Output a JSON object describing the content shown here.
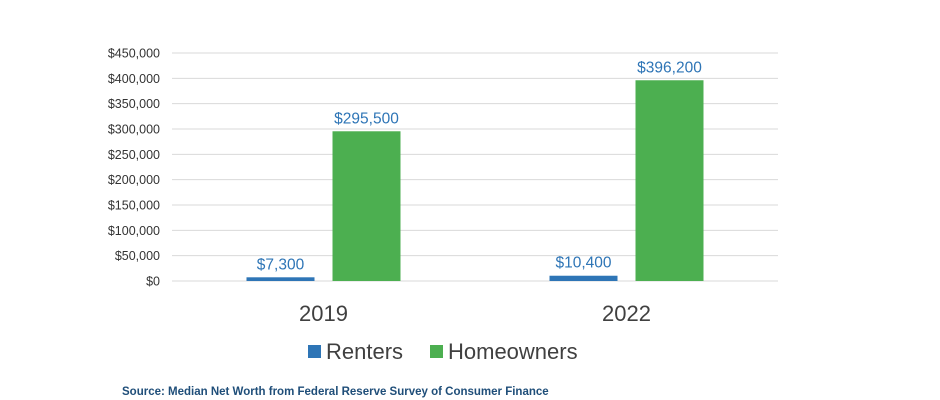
{
  "chart_data": {
    "type": "bar",
    "categories": [
      "2019",
      "2022"
    ],
    "series": [
      {
        "name": "Renters",
        "values": [
          7300,
          10400
        ],
        "labels": [
          "$7,300",
          "$10,400"
        ],
        "color": "#2e75b6"
      },
      {
        "name": "Homeowners",
        "values": [
          295500,
          396200
        ],
        "labels": [
          "$295,500",
          "$396,200"
        ],
        "color": "#4caf50"
      }
    ],
    "title": "",
    "xlabel": "",
    "ylabel": "",
    "ylim": [
      0,
      450000
    ],
    "yticks": [
      0,
      50000,
      100000,
      150000,
      200000,
      250000,
      300000,
      350000,
      400000,
      450000
    ],
    "ytick_labels": [
      "$0",
      "$50,000",
      "$100,000",
      "$150,000",
      "$200,000",
      "$250,000",
      "$300,000",
      "$350,000",
      "$400,000",
      "$450,000"
    ],
    "grid": true,
    "legend_position": "bottom",
    "data_label_color": "#2e75b6",
    "gridline_color": "#d9d9d9"
  },
  "source_note": "Source: Median Net Worth from Federal Reserve Survey of Consumer Finance"
}
